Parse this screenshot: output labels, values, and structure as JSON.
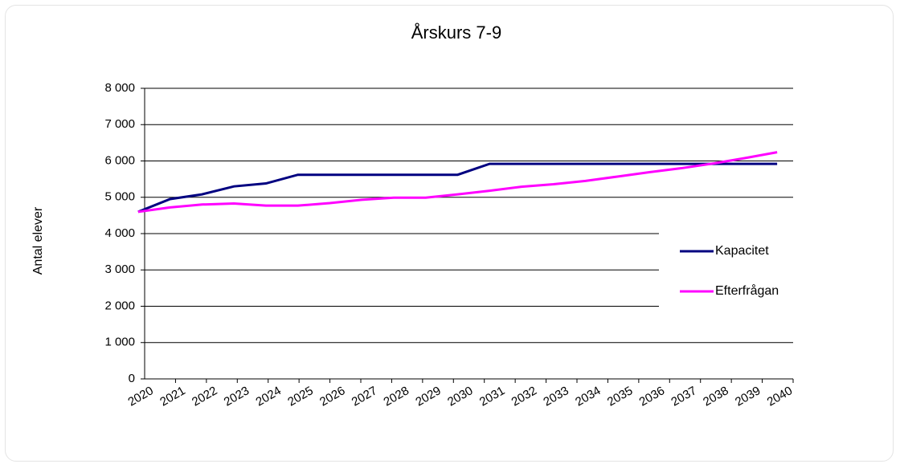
{
  "chart_data": {
    "type": "line",
    "title": "Årskurs 7-9",
    "y_label": "Antal elever",
    "categories": [
      "2020",
      "2021",
      "2022",
      "2023",
      "2024",
      "2025",
      "2026",
      "2027",
      "2028",
      "2029",
      "2030",
      "2031",
      "2032",
      "2033",
      "2034",
      "2035",
      "2036",
      "2037",
      "2038",
      "2039",
      "2040"
    ],
    "series": [
      {
        "name": "Kapacitet",
        "color": "#000080",
        "values": [
          4600,
          4950,
          5080,
          5300,
          5380,
          5620,
          5620,
          5620,
          5620,
          5620,
          5620,
          5920,
          5920,
          5920,
          5920,
          5920,
          5920,
          5920,
          5920,
          5920,
          5920
        ]
      },
      {
        "name": "Efterfrågan",
        "color": "#ff00ff",
        "values": [
          4600,
          4720,
          4800,
          4830,
          4770,
          4770,
          4840,
          4930,
          4990,
          4990,
          5080,
          5180,
          5290,
          5360,
          5450,
          5570,
          5690,
          5800,
          5930,
          6080,
          6240
        ]
      }
    ],
    "ylim": [
      0,
      8000
    ],
    "yticks": [
      {
        "value": 0,
        "label": "0"
      },
      {
        "value": 1000,
        "label": "1 000"
      },
      {
        "value": 2000,
        "label": "2 000"
      },
      {
        "value": 3000,
        "label": "3 000"
      },
      {
        "value": 4000,
        "label": "4 000"
      },
      {
        "value": 5000,
        "label": "5 000"
      },
      {
        "value": 6000,
        "label": "6 000"
      },
      {
        "value": 7000,
        "label": "7 000"
      },
      {
        "value": 8000,
        "label": "8 000"
      }
    ],
    "grid": true,
    "legend": "right"
  }
}
